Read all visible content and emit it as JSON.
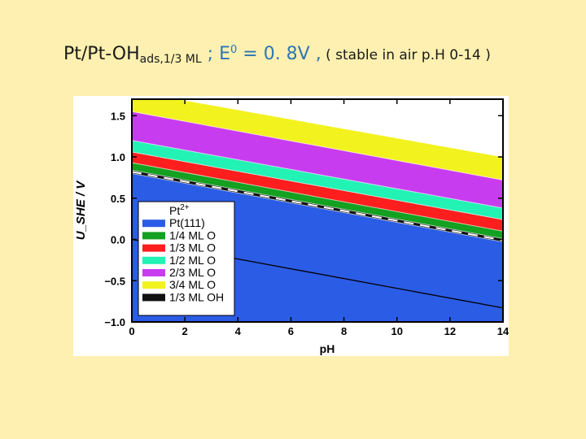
{
  "slide": {
    "title_main": "Pt/Pt-OH",
    "title_sub": "ads,1/3 ML",
    "title_eq_prefix": " ; E",
    "title_eq_sup": "0",
    "title_eq_value": " = 0. 8V ,",
    "title_note": "  ( stable in air p.H 0-14 )"
  },
  "chart_data": {
    "type": "area",
    "xlabel": "pH",
    "ylabel": "U_SHE / V",
    "xlim": [
      0,
      14
    ],
    "ylim": [
      -1.0,
      1.7
    ],
    "x_ticks": [
      "0",
      "2",
      "4",
      "6",
      "8",
      "10",
      "12",
      "14"
    ],
    "y_ticks": [
      "-1.0",
      "-0.5",
      "0.0",
      "0.5",
      "1.0",
      "1.5"
    ],
    "legend_position": "lower-left",
    "boundaries": [
      {
        "between": [
          "Pt(111)",
          "1/3 ML OH"
        ],
        "at_pH0": 0.8,
        "at_pH14": -0.03
      },
      {
        "between": [
          "1/3 ML OH",
          "1/4 ML O"
        ],
        "at_pH0": 0.84,
        "at_pH14": 0.01
      },
      {
        "between": [
          "1/4 ML O",
          "1/3 ML O"
        ],
        "at_pH0": 0.93,
        "at_pH14": 0.1
      },
      {
        "between": [
          "1/3 ML O",
          "1/2 ML O"
        ],
        "at_pH0": 1.06,
        "at_pH14": 0.24
      },
      {
        "between": [
          "1/2 ML O",
          "2/3 ML O"
        ],
        "at_pH0": 1.2,
        "at_pH14": 0.38
      },
      {
        "between": [
          "2/3 ML O",
          "3/4 ML O"
        ],
        "at_pH0": 1.55,
        "at_pH14": 0.72
      },
      {
        "between": [
          "3/4 ML O",
          "Pt2+"
        ],
        "at_pH0": 1.8,
        "at_pH14": 1.0
      }
    ],
    "reference_lines": [
      {
        "style": "dashed",
        "at_pH0": 0.82,
        "at_pH14": -0.01
      },
      {
        "style": "solid",
        "at_pH0": 0.0,
        "at_pH14": -0.83
      }
    ],
    "legend": [
      {
        "label": "Pt2+",
        "color": "#ffffff"
      },
      {
        "label": "Pt(111)",
        "color": "#2b5ce6"
      },
      {
        "label": "1/4 ML O",
        "color": "#14a020"
      },
      {
        "label": "1/3 ML O",
        "color": "#ff1e1e"
      },
      {
        "label": "1/2 ML O",
        "color": "#22f2b4"
      },
      {
        "label": "2/3 ML O",
        "color": "#c83cf0"
      },
      {
        "label": "3/4 ML O",
        "color": "#f2f21e"
      },
      {
        "label": "1/3 ML OH",
        "color": "#111111"
      }
    ]
  }
}
